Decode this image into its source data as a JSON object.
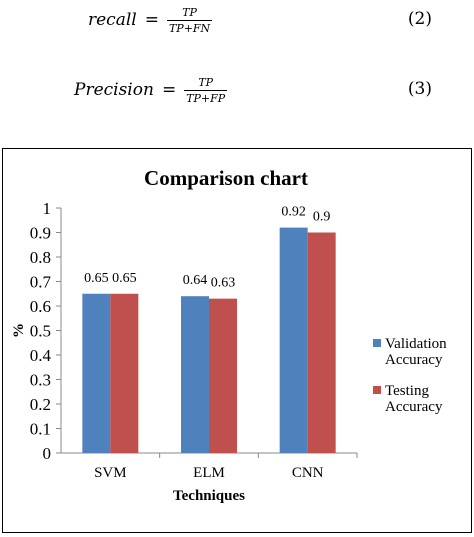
{
  "equations": [
    {
      "lhs": "recall",
      "numerator": "TP",
      "denominator": "TP+FN",
      "number": "(2)"
    },
    {
      "lhs": "Precision",
      "numerator": "TP",
      "denominator": "TP+FP",
      "number": "(3)"
    }
  ],
  "chart_data": {
    "type": "bar",
    "title": "Comparison chart",
    "xlabel": "Techniques",
    "ylabel": "%",
    "categories": [
      "SVM",
      "ELM",
      "CNN"
    ],
    "ylim": [
      0,
      1
    ],
    "yticks": [
      0,
      0.1,
      0.2,
      0.3,
      0.4,
      0.5,
      0.6,
      0.7,
      0.8,
      0.9,
      1
    ],
    "ytick_labels": [
      "0",
      "0.1",
      "0.2",
      "0.3",
      "0.4",
      "0.5",
      "0.6",
      "0.7",
      "0.8",
      "0.9",
      "1"
    ],
    "grid": false,
    "legend_position": "right",
    "series": [
      {
        "name": "Validation Accuracy",
        "legend_lines": [
          "Validation",
          "Accuracy"
        ],
        "color": "#4f81bd",
        "values": [
          0.65,
          0.64,
          0.92
        ],
        "labels": [
          "0.65",
          "0.64",
          "0.92"
        ]
      },
      {
        "name": "Testing Accuracy",
        "legend_lines": [
          "Testing",
          "Accuracy"
        ],
        "color": "#c0504d",
        "values": [
          0.65,
          0.63,
          0.9
        ],
        "labels": [
          "0.65",
          "0.63",
          "0.9"
        ]
      }
    ]
  }
}
